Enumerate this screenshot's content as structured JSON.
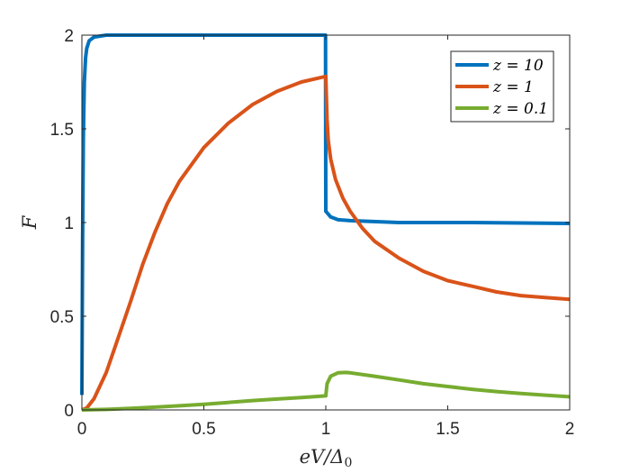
{
  "chart_data": {
    "type": "line",
    "xlabel": "eV/Δ₀",
    "ylabel": "F",
    "xlim": [
      0,
      2
    ],
    "ylim": [
      0,
      2
    ],
    "xticks": [
      0,
      0.5,
      1,
      1.5,
      2
    ],
    "yticks": [
      0,
      0.5,
      1,
      1.5,
      2
    ],
    "xtick_labels": [
      "0",
      "0.5",
      "1",
      "1.5",
      "2"
    ],
    "ytick_labels": [
      "0",
      "0.5",
      "1",
      "1.5",
      "2"
    ],
    "grid": false,
    "legend_position": "top-right",
    "series": [
      {
        "name": "z = 10",
        "color": "#0072BD",
        "points": [
          [
            0.0,
            0.08
          ],
          [
            0.003,
            0.9
          ],
          [
            0.006,
            1.45
          ],
          [
            0.01,
            1.75
          ],
          [
            0.015,
            1.88
          ],
          [
            0.02,
            1.93
          ],
          [
            0.03,
            1.97
          ],
          [
            0.05,
            1.99
          ],
          [
            0.1,
            2.0
          ],
          [
            0.3,
            2.0
          ],
          [
            0.6,
            2.0
          ],
          [
            0.9,
            2.0
          ],
          [
            0.999,
            2.0
          ],
          [
            1.0,
            1.06
          ],
          [
            1.02,
            1.03
          ],
          [
            1.05,
            1.015
          ],
          [
            1.1,
            1.01
          ],
          [
            1.3,
            1.0
          ],
          [
            1.6,
            1.0
          ],
          [
            2.0,
            0.995
          ]
        ]
      },
      {
        "name": "z = 1",
        "color": "#D95319",
        "points": [
          [
            0.0,
            0.0
          ],
          [
            0.02,
            0.01
          ],
          [
            0.05,
            0.06
          ],
          [
            0.1,
            0.2
          ],
          [
            0.15,
            0.39
          ],
          [
            0.2,
            0.58
          ],
          [
            0.25,
            0.78
          ],
          [
            0.3,
            0.95
          ],
          [
            0.35,
            1.1
          ],
          [
            0.4,
            1.22
          ],
          [
            0.5,
            1.4
          ],
          [
            0.6,
            1.53
          ],
          [
            0.7,
            1.63
          ],
          [
            0.8,
            1.7
          ],
          [
            0.9,
            1.75
          ],
          [
            1.0,
            1.78
          ],
          [
            1.005,
            1.55
          ],
          [
            1.01,
            1.44
          ],
          [
            1.02,
            1.34
          ],
          [
            1.04,
            1.23
          ],
          [
            1.07,
            1.13
          ],
          [
            1.1,
            1.06
          ],
          [
            1.15,
            0.97
          ],
          [
            1.2,
            0.9
          ],
          [
            1.3,
            0.81
          ],
          [
            1.4,
            0.74
          ],
          [
            1.5,
            0.69
          ],
          [
            1.6,
            0.66
          ],
          [
            1.7,
            0.63
          ],
          [
            1.8,
            0.61
          ],
          [
            1.9,
            0.6
          ],
          [
            2.0,
            0.59
          ]
        ]
      },
      {
        "name": "z = 0.1",
        "color": "#77AC30",
        "points": [
          [
            0.0,
            0.0
          ],
          [
            0.1,
            0.003
          ],
          [
            0.2,
            0.008
          ],
          [
            0.3,
            0.015
          ],
          [
            0.4,
            0.022
          ],
          [
            0.5,
            0.03
          ],
          [
            0.6,
            0.04
          ],
          [
            0.7,
            0.05
          ],
          [
            0.8,
            0.058
          ],
          [
            0.9,
            0.066
          ],
          [
            1.0,
            0.075
          ],
          [
            1.005,
            0.14
          ],
          [
            1.02,
            0.18
          ],
          [
            1.05,
            0.198
          ],
          [
            1.08,
            0.2
          ],
          [
            1.1,
            0.198
          ],
          [
            1.2,
            0.18
          ],
          [
            1.3,
            0.16
          ],
          [
            1.4,
            0.14
          ],
          [
            1.5,
            0.125
          ],
          [
            1.6,
            0.11
          ],
          [
            1.7,
            0.098
          ],
          [
            1.8,
            0.088
          ],
          [
            1.9,
            0.079
          ],
          [
            2.0,
            0.07
          ]
        ]
      }
    ]
  }
}
